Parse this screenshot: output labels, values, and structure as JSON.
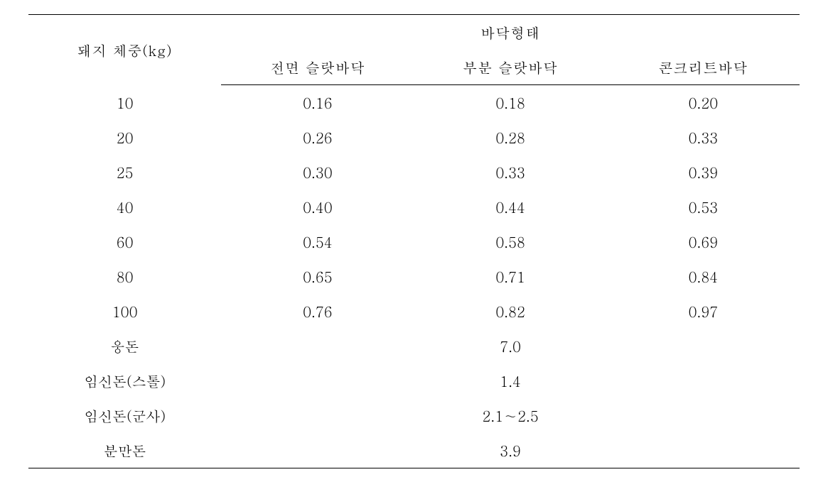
{
  "table": {
    "headers": {
      "weight_label": "돼지 체중(kg)",
      "floor_type_label": "바닥형태",
      "col1": "전면 슬랏바닥",
      "col2": "부분 슬랏바닥",
      "col3": "콘크리트바닥"
    },
    "rows": [
      {
        "weight": "10",
        "v1": "0.16",
        "v2": "0.18",
        "v3": "0.20"
      },
      {
        "weight": "20",
        "v1": "0.26",
        "v2": "0.28",
        "v3": "0.33"
      },
      {
        "weight": "25",
        "v1": "0.30",
        "v2": "0.33",
        "v3": "0.39"
      },
      {
        "weight": "40",
        "v1": "0.40",
        "v2": "0.44",
        "v3": "0.53"
      },
      {
        "weight": "60",
        "v1": "0.54",
        "v2": "0.58",
        "v3": "0.69"
      },
      {
        "weight": "80",
        "v1": "0.65",
        "v2": "0.71",
        "v3": "0.84"
      },
      {
        "weight": "100",
        "v1": "0.76",
        "v2": "0.82",
        "v3": "0.97"
      }
    ],
    "merged_rows": [
      {
        "label": "웅돈",
        "value": "7.0"
      },
      {
        "label": "임신돈(스톨)",
        "value": "1.4"
      },
      {
        "label": "임신돈(군사)",
        "value": "2.1∼2.5"
      },
      {
        "label": "분만돈",
        "value": "3.9"
      }
    ],
    "style": {
      "font_size_header": 20,
      "font_size_body": 20,
      "border_color": "#000000",
      "background_color": "#ffffff",
      "text_color": "#000000",
      "border_top_width": 1.5,
      "border_bottom_width": 1.5,
      "header_border_width": 1
    }
  }
}
